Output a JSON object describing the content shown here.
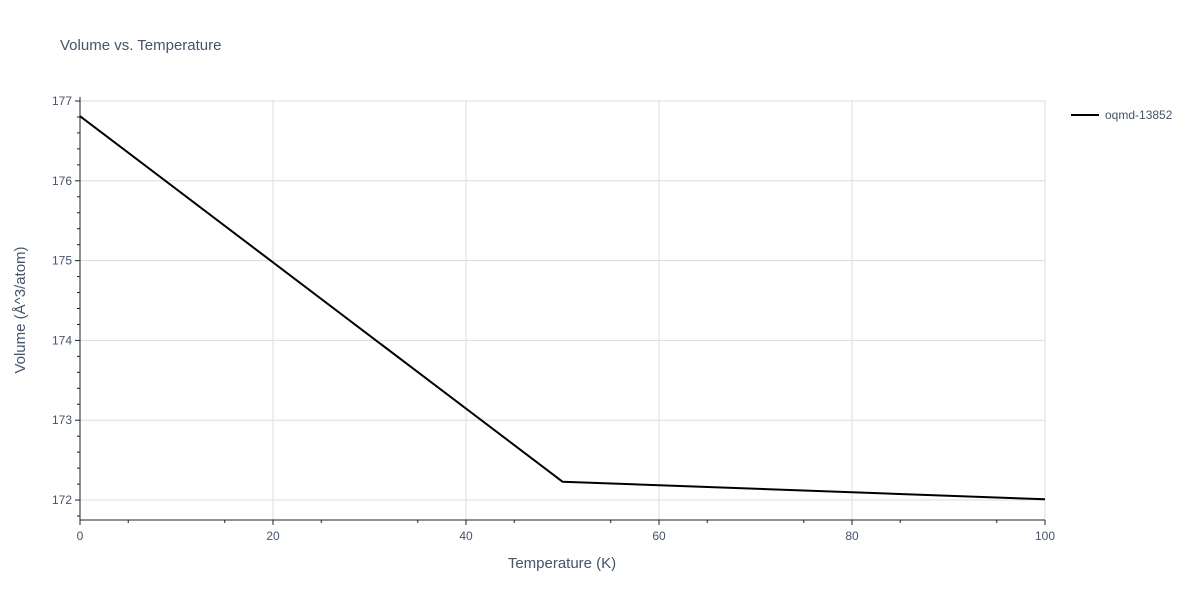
{
  "chart_data": {
    "type": "line",
    "title": "Volume vs. Temperature",
    "xlabel": "Temperature (K)",
    "ylabel": "Volume (Å^3/atom)",
    "xlim": [
      0,
      100
    ],
    "ylim": [
      171.75,
      177.05
    ],
    "x_ticks": [
      0,
      20,
      40,
      60,
      80,
      100
    ],
    "y_ticks": [
      172,
      173,
      174,
      175,
      176,
      177
    ],
    "grid": true,
    "legend_position": "top-right",
    "series": [
      {
        "name": "oqmd-13852",
        "color": "#000000",
        "x": [
          0,
          50,
          100
        ],
        "y": [
          176.81,
          172.23,
          172.01
        ]
      }
    ]
  }
}
